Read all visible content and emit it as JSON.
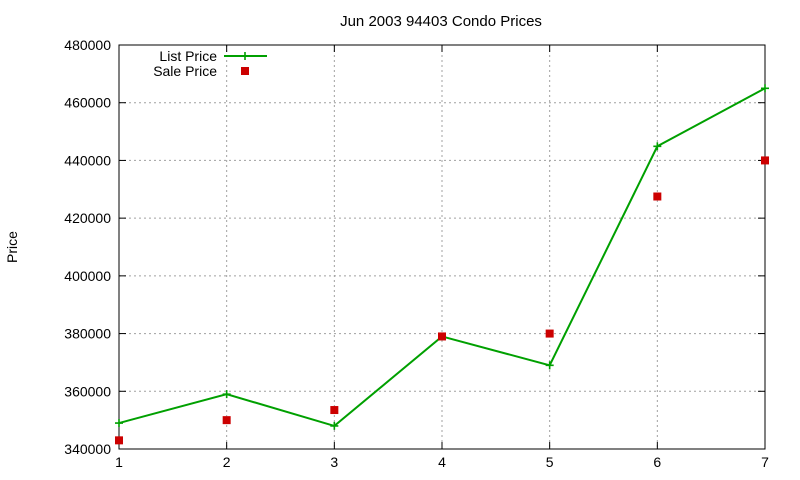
{
  "chart_data": {
    "type": "line",
    "title": "Jun 2003 94403 Condo Prices",
    "xlabel": "",
    "ylabel": "Price",
    "x": [
      1,
      2,
      3,
      4,
      5,
      6,
      7
    ],
    "xlim": [
      1,
      7
    ],
    "ylim": [
      340000,
      480000
    ],
    "xticks": [
      "1",
      "2",
      "3",
      "4",
      "5",
      "6",
      "7"
    ],
    "yticks": [
      "340000",
      "360000",
      "380000",
      "400000",
      "420000",
      "440000",
      "460000",
      "480000"
    ],
    "grid": true,
    "legend_position": "top-left",
    "series": [
      {
        "name": "List Price",
        "style": "line-with-plus-markers",
        "color": "#00a000",
        "values": [
          349000,
          359000,
          348000,
          379000,
          369000,
          444900,
          465000
        ]
      },
      {
        "name": "Sale Price",
        "style": "square-markers",
        "color": "#cc0000",
        "values": [
          343000,
          350000,
          353500,
          379000,
          380000,
          427500,
          440000
        ]
      }
    ]
  }
}
